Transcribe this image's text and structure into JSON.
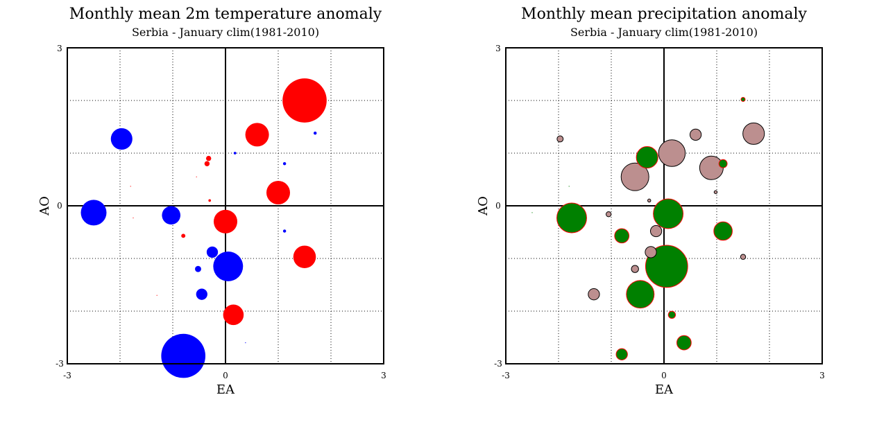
{
  "chart_data": [
    {
      "type": "scatter",
      "title": "Monthly mean 2m temperature anomaly",
      "subtitle": "Serbia - January  clim(1981-2010)",
      "xlabel": "EA",
      "ylabel": "AO",
      "xlim": [
        -3,
        3
      ],
      "ylim": [
        -3,
        3
      ],
      "x_tick_labels": [
        "-3",
        "0",
        "3"
      ],
      "y_tick_labels": [
        "-3",
        "0",
        "3"
      ],
      "grid": true,
      "colors": {
        "positive": "#ff0000",
        "negative": "#0000ff"
      },
      "points": [
        {
          "x": 1.5,
          "y": 2.0,
          "size": 4.3,
          "sign": "positive"
        },
        {
          "x": 0.6,
          "y": 1.35,
          "size": 2.3,
          "sign": "positive"
        },
        {
          "x": 1.0,
          "y": 0.25,
          "size": 2.3,
          "sign": "positive"
        },
        {
          "x": 0.0,
          "y": -0.3,
          "size": 2.3,
          "sign": "positive"
        },
        {
          "x": 1.5,
          "y": -0.97,
          "size": 2.2,
          "sign": "positive"
        },
        {
          "x": 0.15,
          "y": -2.07,
          "size": 2.0,
          "sign": "positive"
        },
        {
          "x": -0.35,
          "y": 0.8,
          "size": 0.5,
          "sign": "positive"
        },
        {
          "x": -0.32,
          "y": 0.9,
          "size": 0.5,
          "sign": "positive"
        },
        {
          "x": -0.8,
          "y": -0.57,
          "size": 0.4,
          "sign": "positive"
        },
        {
          "x": -0.3,
          "y": 0.1,
          "size": 0.25,
          "sign": "positive"
        },
        {
          "x": -1.8,
          "y": 0.37,
          "size": 0.08,
          "sign": "positive"
        },
        {
          "x": -1.75,
          "y": -0.23,
          "size": 0.05,
          "sign": "positive"
        },
        {
          "x": -1.3,
          "y": -1.7,
          "size": 0.05,
          "sign": "positive"
        },
        {
          "x": -0.55,
          "y": 0.55,
          "size": 0.05,
          "sign": "positive"
        },
        {
          "x": -0.8,
          "y": -2.85,
          "size": 4.3,
          "sign": "negative"
        },
        {
          "x": 0.05,
          "y": -1.15,
          "size": 2.9,
          "sign": "negative"
        },
        {
          "x": -2.5,
          "y": -0.13,
          "size": 2.5,
          "sign": "negative"
        },
        {
          "x": -1.97,
          "y": 1.27,
          "size": 2.1,
          "sign": "negative"
        },
        {
          "x": -1.03,
          "y": -0.18,
          "size": 1.8,
          "sign": "negative"
        },
        {
          "x": -0.45,
          "y": -1.68,
          "size": 1.1,
          "sign": "negative"
        },
        {
          "x": -0.25,
          "y": -0.88,
          "size": 1.1,
          "sign": "negative"
        },
        {
          "x": -0.52,
          "y": -1.2,
          "size": 0.6,
          "sign": "negative"
        },
        {
          "x": 1.12,
          "y": 0.8,
          "size": 0.3,
          "sign": "negative"
        },
        {
          "x": 1.12,
          "y": -0.48,
          "size": 0.3,
          "sign": "negative"
        },
        {
          "x": 1.7,
          "y": 1.38,
          "size": 0.3,
          "sign": "negative"
        },
        {
          "x": 0.18,
          "y": 1.0,
          "size": 0.25,
          "sign": "negative"
        },
        {
          "x": 0.38,
          "y": -2.6,
          "size": 0.08,
          "sign": "negative"
        }
      ]
    },
    {
      "type": "scatter",
      "title": "Monthly mean precipitation anomaly",
      "subtitle": "Serbia - January  clim(1981-2010)",
      "xlabel": "EA",
      "ylabel": "AO",
      "xlim": [
        -3,
        3
      ],
      "ylim": [
        -3,
        3
      ],
      "x_tick_labels": [
        "-3",
        "0",
        "3"
      ],
      "y_tick_labels": [
        "-3",
        "0",
        "3"
      ],
      "grid": true,
      "colors": {
        "positive": "#008000",
        "negative": "#bc8f8f",
        "positive_edge": "#ff0000",
        "negative_edge": "#000000"
      },
      "points": [
        {
          "x": 0.05,
          "y": -1.15,
          "size": 4.1,
          "sign": "positive"
        },
        {
          "x": -1.75,
          "y": -0.23,
          "size": 2.9,
          "sign": "positive"
        },
        {
          "x": 0.08,
          "y": -0.15,
          "size": 2.9,
          "sign": "positive"
        },
        {
          "x": -0.45,
          "y": -1.68,
          "size": 2.7,
          "sign": "positive"
        },
        {
          "x": -0.32,
          "y": 0.92,
          "size": 2.1,
          "sign": "positive"
        },
        {
          "x": 1.12,
          "y": -0.48,
          "size": 1.8,
          "sign": "positive"
        },
        {
          "x": -0.8,
          "y": -0.57,
          "size": 1.4,
          "sign": "positive"
        },
        {
          "x": 0.38,
          "y": -2.6,
          "size": 1.4,
          "sign": "positive"
        },
        {
          "x": -0.8,
          "y": -2.82,
          "size": 1.1,
          "sign": "positive"
        },
        {
          "x": 1.12,
          "y": 0.8,
          "size": 0.8,
          "sign": "positive"
        },
        {
          "x": 0.15,
          "y": -2.07,
          "size": 0.7,
          "sign": "positive"
        },
        {
          "x": 1.5,
          "y": 2.02,
          "size": 0.4,
          "sign": "positive"
        },
        {
          "x": -2.5,
          "y": -0.13,
          "size": 0.08,
          "sign": "positive"
        },
        {
          "x": -1.8,
          "y": 0.37,
          "size": 0.05,
          "sign": "positive"
        },
        {
          "x": 0.15,
          "y": 1.0,
          "size": 2.6,
          "sign": "negative"
        },
        {
          "x": -0.55,
          "y": 0.55,
          "size": 2.7,
          "sign": "negative"
        },
        {
          "x": 0.9,
          "y": 0.72,
          "size": 2.3,
          "sign": "negative"
        },
        {
          "x": 1.7,
          "y": 1.37,
          "size": 2.1,
          "sign": "negative"
        },
        {
          "x": 0.6,
          "y": 1.35,
          "size": 1.1,
          "sign": "negative"
        },
        {
          "x": -0.15,
          "y": -0.48,
          "size": 1.1,
          "sign": "negative"
        },
        {
          "x": -0.25,
          "y": -0.88,
          "size": 1.1,
          "sign": "negative"
        },
        {
          "x": -1.33,
          "y": -1.68,
          "size": 1.1,
          "sign": "negative"
        },
        {
          "x": -0.55,
          "y": -1.2,
          "size": 0.7,
          "sign": "negative"
        },
        {
          "x": -1.97,
          "y": 1.27,
          "size": 0.6,
          "sign": "negative"
        },
        {
          "x": -1.05,
          "y": -0.16,
          "size": 0.5,
          "sign": "negative"
        },
        {
          "x": 1.5,
          "y": -0.97,
          "size": 0.5,
          "sign": "negative"
        },
        {
          "x": 0.98,
          "y": 0.26,
          "size": 0.3,
          "sign": "negative"
        },
        {
          "x": -0.28,
          "y": 0.1,
          "size": 0.3,
          "sign": "negative"
        }
      ]
    }
  ]
}
